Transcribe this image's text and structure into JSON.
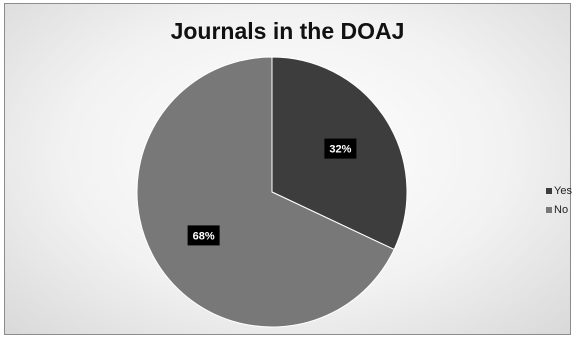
{
  "chart_data": {
    "type": "pie",
    "title": "Journals in the DOAJ",
    "categories": [
      "Yes",
      "No"
    ],
    "values": [
      32,
      68
    ],
    "labels": [
      "32%",
      "68%"
    ],
    "colors": [
      "#3d3d3d",
      "#787878"
    ],
    "legend_position": "right"
  }
}
